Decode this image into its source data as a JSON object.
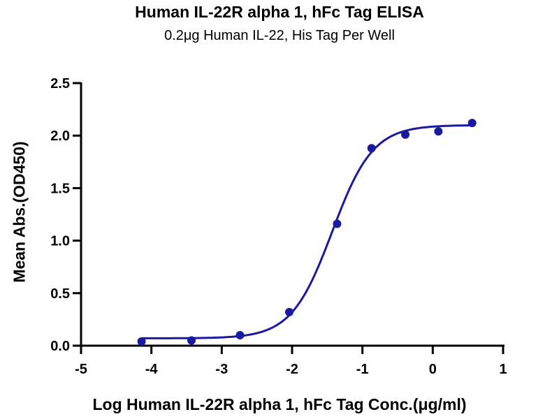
{
  "chart_data": {
    "type": "scatter",
    "title": "Human IL-22R alpha 1, hFc Tag ELISA",
    "subtitle": "0.2μg Human IL-22, His Tag Per Well",
    "xlabel": "Log Human IL-22R alpha 1, hFc Tag Conc.(μg/ml)",
    "ylabel": "Mean Abs.(OD450)",
    "xlim": [
      -5,
      1
    ],
    "ylim": [
      0,
      2.5
    ],
    "xticks": [
      "-5",
      "-4",
      "-3",
      "-2",
      "-1",
      "0",
      "1"
    ],
    "yticks": [
      "0.0",
      "0.5",
      "1.0",
      "1.5",
      "2.0",
      "2.5"
    ],
    "grid": false,
    "color": "#1a1aa0",
    "series": [
      {
        "name": "ELISA",
        "x": [
          -4.14,
          -3.43,
          -2.74,
          -2.04,
          -1.36,
          -0.87,
          -0.39,
          0.08,
          0.56
        ],
        "y": [
          0.04,
          0.05,
          0.1,
          0.32,
          1.16,
          1.88,
          2.01,
          2.04,
          2.12
        ]
      }
    ],
    "fit": {
      "model": "4PL",
      "bottom": 0.07,
      "top": 2.1,
      "logEC50": -1.43,
      "hill": 1.5
    }
  }
}
